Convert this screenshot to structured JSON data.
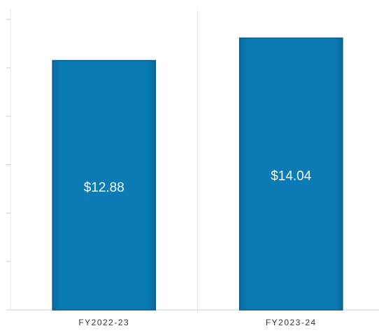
{
  "chart_data": {
    "type": "bar",
    "categories": [
      "FY2022-23",
      "FY2023-24"
    ],
    "values": [
      12.88,
      14.04
    ],
    "value_labels": [
      "$12.88",
      "$14.04"
    ],
    "color": "#0a7bb5",
    "ylim": [
      0,
      15.5
    ],
    "yticks": [
      0,
      2.5,
      5,
      7.5,
      10,
      12.5,
      15
    ]
  }
}
